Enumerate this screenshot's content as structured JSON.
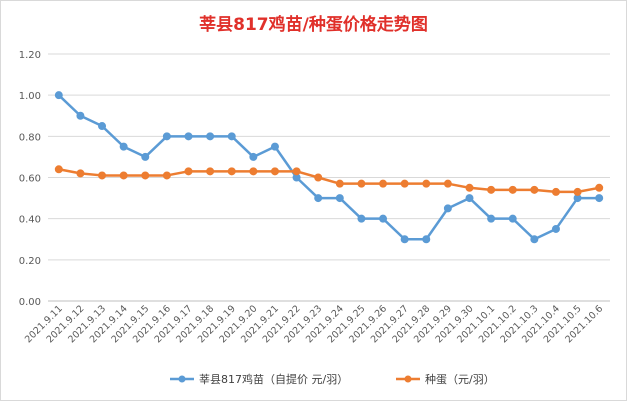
{
  "chart_data": {
    "type": "line",
    "title": "莘县817鸡苗/种蛋价格走势图",
    "categories": [
      "2021.9.11",
      "2021.9.12",
      "2021.9.13",
      "2021.9.14",
      "2021.9.15",
      "2021.9.16",
      "2021.9.17",
      "2021.9.18",
      "2021.9.19",
      "2021.9.20",
      "2021.9.21",
      "2021.9.22",
      "2021.9.23",
      "2021.9.24",
      "2021.9.25",
      "2021.9.26",
      "2021.9.27",
      "2021.9.28",
      "2021.9.29",
      "2021.9.30",
      "2021.10.1",
      "2021.10.2",
      "2021.10.3",
      "2021.10.4",
      "2021.10.5",
      "2021.10.6"
    ],
    "series": [
      {
        "name": "莘县817鸡苗（自提价 元/羽）",
        "color": "#5b9bd5",
        "values": [
          1.0,
          0.9,
          0.85,
          0.75,
          0.7,
          0.8,
          0.8,
          0.8,
          0.8,
          0.7,
          0.75,
          0.6,
          0.5,
          0.5,
          0.4,
          0.4,
          0.3,
          0.3,
          0.45,
          0.5,
          0.4,
          0.4,
          0.3,
          0.35,
          0.5,
          0.5
        ]
      },
      {
        "name": "种蛋（元/羽）",
        "color": "#ed7d31",
        "values": [
          0.64,
          0.62,
          0.61,
          0.61,
          0.61,
          0.61,
          0.63,
          0.63,
          0.63,
          0.63,
          0.63,
          0.63,
          0.6,
          0.57,
          0.57,
          0.57,
          0.57,
          0.57,
          0.57,
          0.55,
          0.54,
          0.54,
          0.54,
          0.53,
          0.53,
          0.55
        ]
      }
    ],
    "y_ticks": [
      "0.00",
      "0.20",
      "0.40",
      "0.60",
      "0.80",
      "1.00",
      "1.20"
    ],
    "ylim": [
      0,
      1.2
    ],
    "grid": true,
    "legend_position": "bottom"
  }
}
